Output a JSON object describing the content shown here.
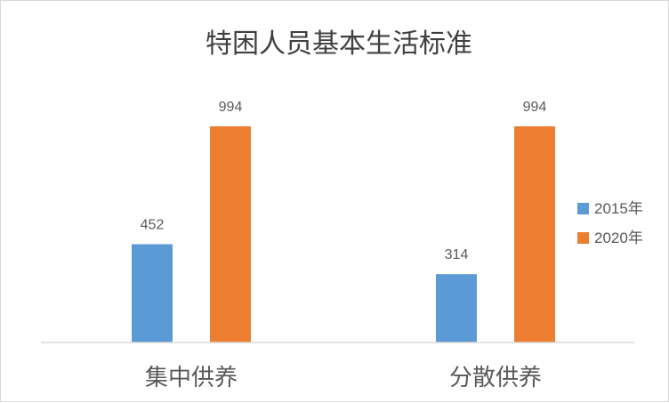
{
  "chart_data": {
    "type": "bar",
    "title": "特困人员基本生活标准",
    "categories": [
      "集中供养",
      "分散供养"
    ],
    "series": [
      {
        "name": "2015年",
        "values": [
          452,
          314
        ],
        "color": "#5b9bd5"
      },
      {
        "name": "2020年",
        "values": [
          994,
          994
        ],
        "color": "#ed7d31"
      }
    ],
    "xlabel": "",
    "ylabel": "",
    "ylim": [
      0,
      1000
    ],
    "grid": false,
    "legend_position": "right",
    "data_labels": true
  }
}
